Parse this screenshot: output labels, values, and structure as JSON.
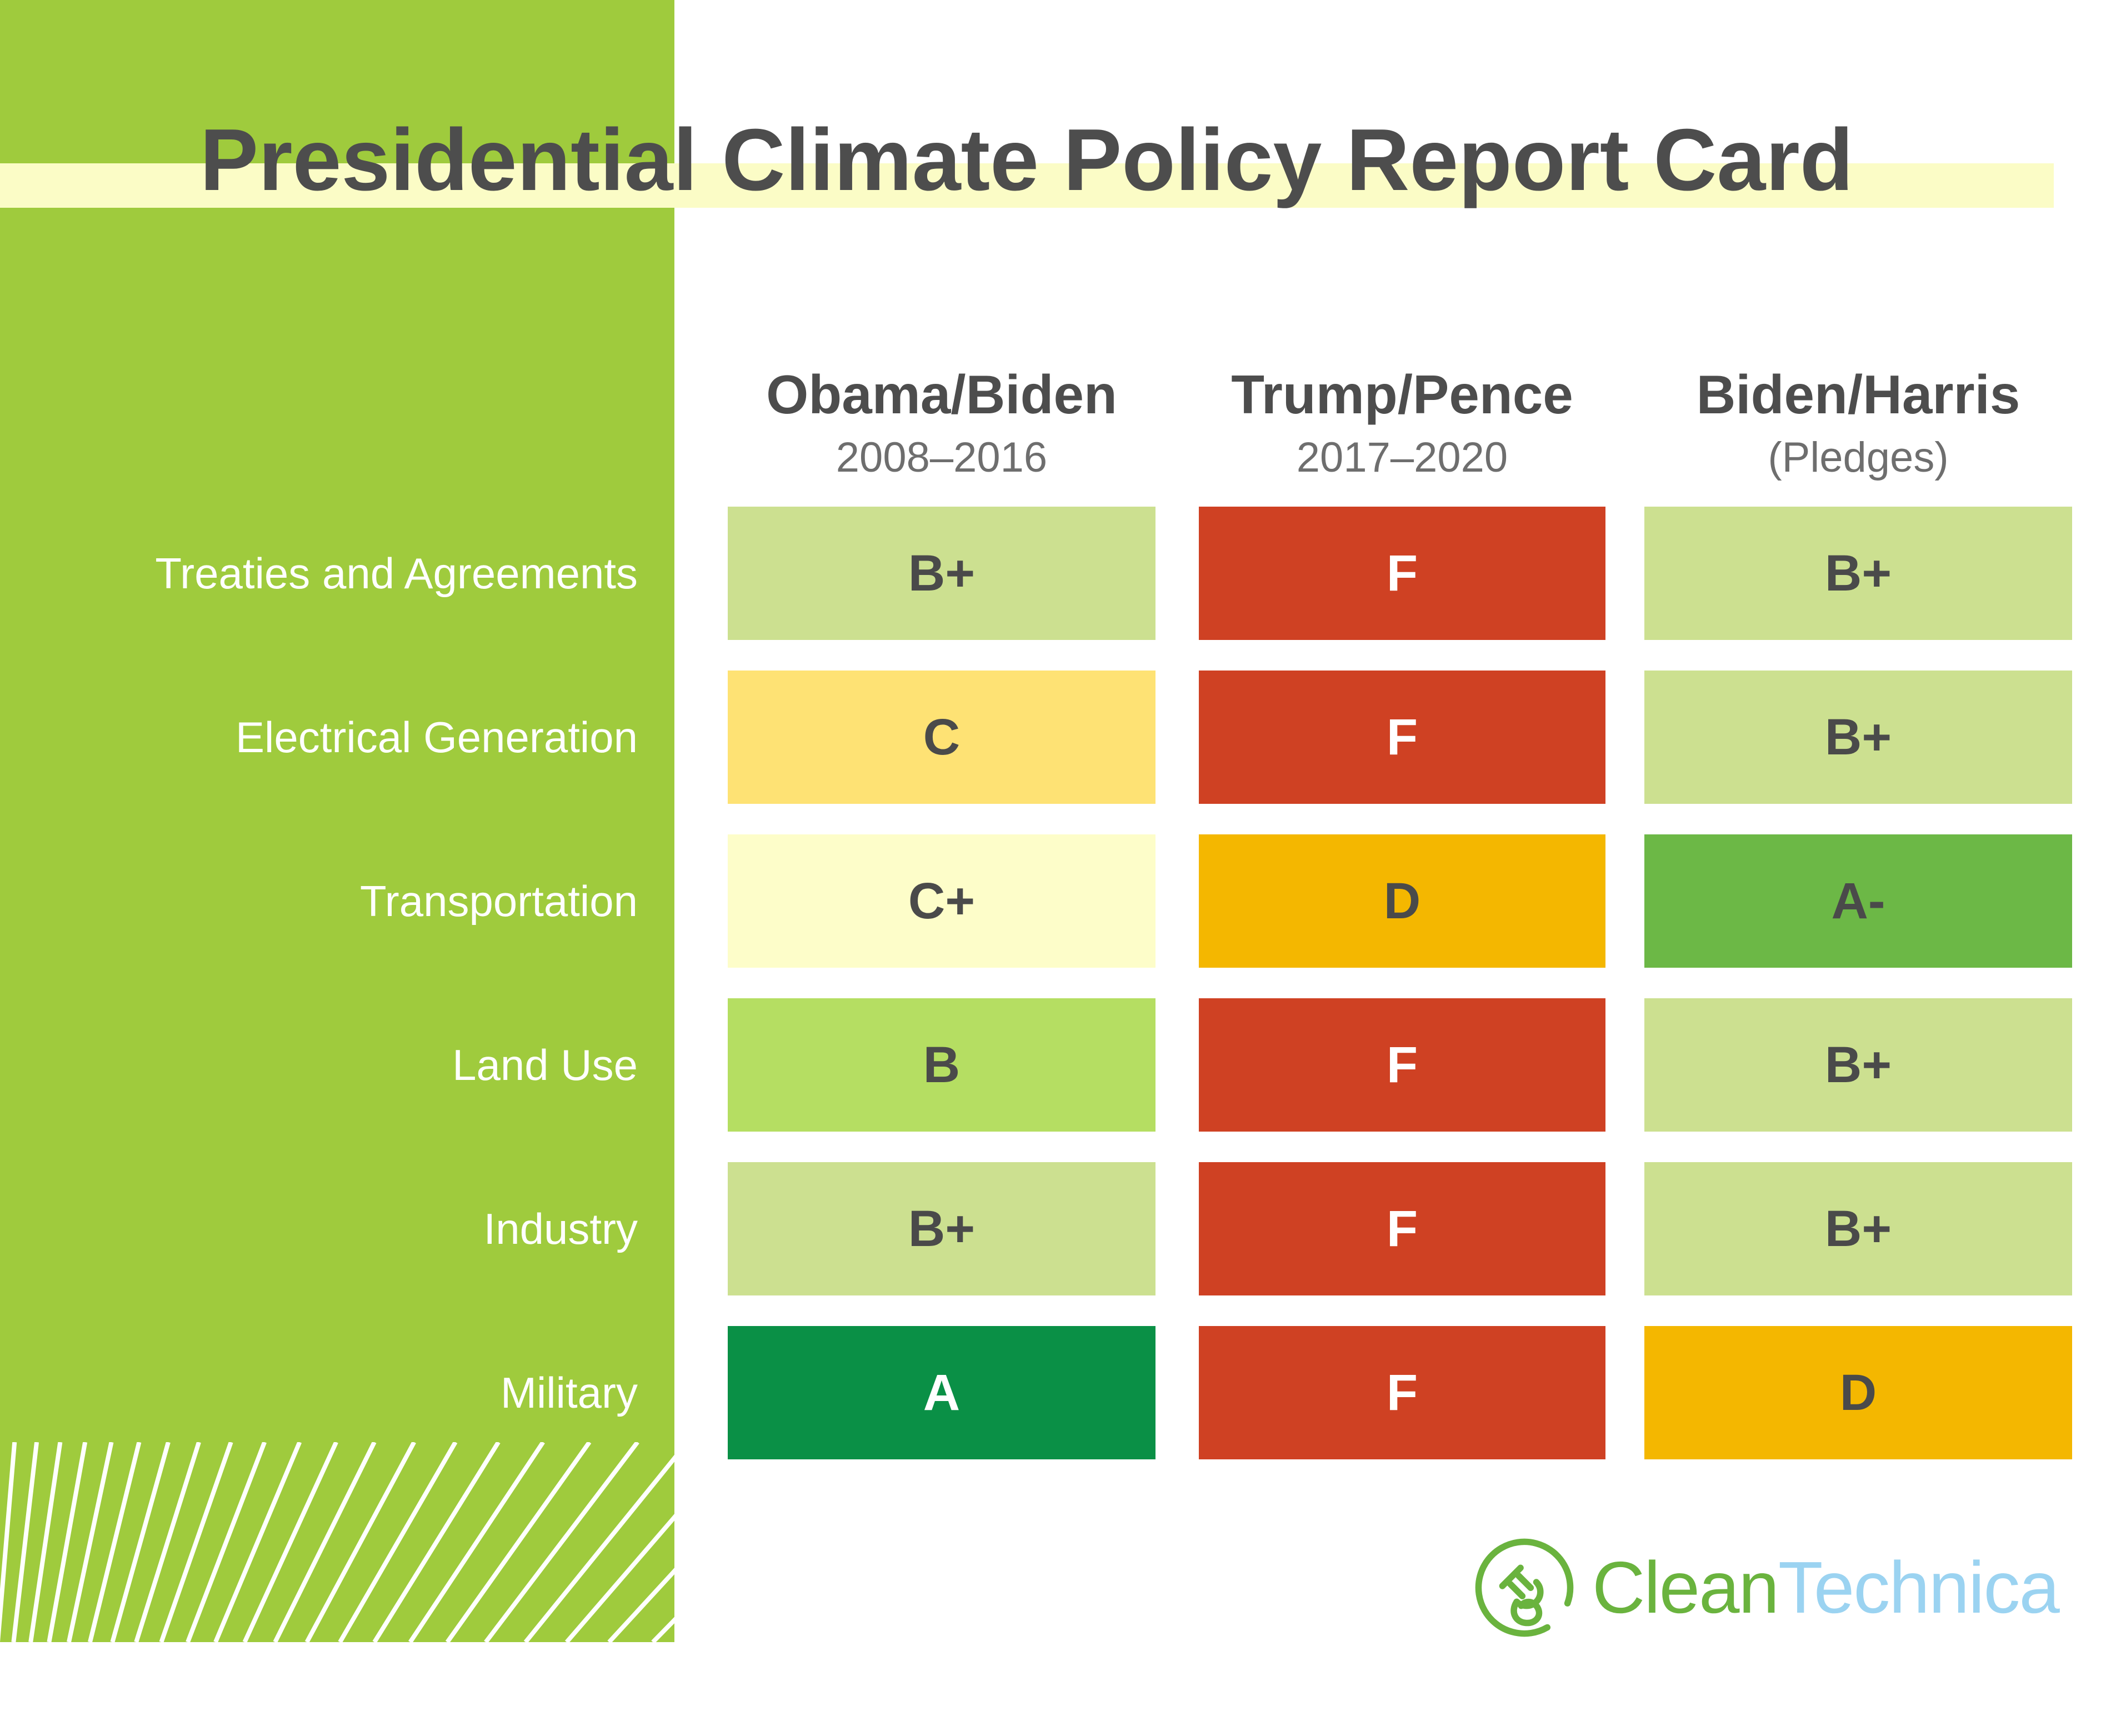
{
  "title": "Presidential Climate Policy Report Card",
  "columns": [
    {
      "label": "Obama/Biden",
      "sublabel": "2008–2016"
    },
    {
      "label": "Trump/Pence",
      "sublabel": "2017–2020"
    },
    {
      "label": "Biden/Harris",
      "sublabel": "(Pledges)"
    }
  ],
  "rows": [
    {
      "label": "Treaties and Agreements",
      "grades": [
        {
          "grade": "B+",
          "bg": "#cce090",
          "fg": "#4a4a4a"
        },
        {
          "grade": "F",
          "bg": "#cf4123",
          "fg": "#ffffff"
        },
        {
          "grade": "B+",
          "bg": "#cce090",
          "fg": "#4a4a4a"
        }
      ]
    },
    {
      "label": "Electrical Generation",
      "grades": [
        {
          "grade": "C",
          "bg": "#fee274",
          "fg": "#4a4a4a"
        },
        {
          "grade": "F",
          "bg": "#cf4123",
          "fg": "#ffffff"
        },
        {
          "grade": "B+",
          "bg": "#cce090",
          "fg": "#4a4a4a"
        }
      ]
    },
    {
      "label": "Transportation",
      "grades": [
        {
          "grade": "C+",
          "bg": "#fdfdc9",
          "fg": "#4a4a4a"
        },
        {
          "grade": "D",
          "bg": "#f4b700",
          "fg": "#4a4a4a"
        },
        {
          "grade": "A-",
          "bg": "#6cb846",
          "fg": "#4a4a4a"
        }
      ]
    },
    {
      "label": "Land Use",
      "grades": [
        {
          "grade": "B",
          "bg": "#b5de62",
          "fg": "#4a4a4a"
        },
        {
          "grade": "F",
          "bg": "#cf4123",
          "fg": "#ffffff"
        },
        {
          "grade": "B+",
          "bg": "#cce090",
          "fg": "#4a4a4a"
        }
      ]
    },
    {
      "label": "Industry",
      "grades": [
        {
          "grade": "B+",
          "bg": "#cce090",
          "fg": "#4a4a4a"
        },
        {
          "grade": "F",
          "bg": "#cf4123",
          "fg": "#ffffff"
        },
        {
          "grade": "B+",
          "bg": "#cce090",
          "fg": "#4a4a4a"
        }
      ]
    },
    {
      "label": "Military",
      "grades": [
        {
          "grade": "A",
          "bg": "#0a9046",
          "fg": "#ffffff"
        },
        {
          "grade": "F",
          "bg": "#cf4123",
          "fg": "#ffffff"
        },
        {
          "grade": "D",
          "bg": "#f4b700",
          "fg": "#4a4a4a"
        }
      ]
    }
  ],
  "logo": {
    "prefix": "Clean",
    "suffix": "Technica",
    "icon": "plug-circle-icon",
    "green": "#6ab33e",
    "blue": "#9bd3f1"
  },
  "palette": {
    "sidebar_green": "#9fcb3d",
    "band_yellow": "#fbfcc6",
    "title_text": "#4d4d4d",
    "subtitle_text": "#6e6e6e",
    "row_label_text": "#ffffff"
  },
  "chart_data": {
    "type": "table",
    "title": "Presidential Climate Policy Report Card",
    "categories": [
      "Treaties and Agreements",
      "Electrical Generation",
      "Transportation",
      "Land Use",
      "Industry",
      "Military"
    ],
    "series": [
      {
        "name": "Obama/Biden 2008–2016",
        "values": [
          "B+",
          "C",
          "C+",
          "B",
          "B+",
          "A"
        ]
      },
      {
        "name": "Trump/Pence 2017–2020",
        "values": [
          "F",
          "F",
          "D",
          "F",
          "F",
          "F"
        ]
      },
      {
        "name": "Biden/Harris (Pledges)",
        "values": [
          "B+",
          "B+",
          "A-",
          "B+",
          "B+",
          "D"
        ]
      }
    ],
    "legend_position": "none",
    "grid": false
  }
}
